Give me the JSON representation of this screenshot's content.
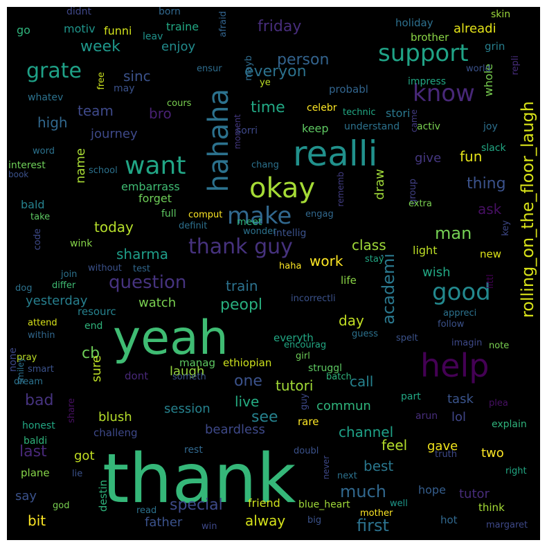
{
  "words": [
    {
      "text": "thank",
      "color": "#35b779"
    },
    {
      "text": "yeah",
      "color": "#3fbc73"
    },
    {
      "text": "realli",
      "color": "#21918c"
    },
    {
      "text": "help",
      "color": "#440154"
    },
    {
      "text": "hahaha",
      "color": "#2c728e"
    },
    {
      "text": "okay",
      "color": "#a5db36"
    },
    {
      "text": "want",
      "color": "#21a585"
    },
    {
      "text": "make",
      "color": "#31688e"
    },
    {
      "text": "support",
      "color": "#20a386"
    },
    {
      "text": "know",
      "color": "#482878"
    },
    {
      "text": "grate",
      "color": "#1fa187"
    },
    {
      "text": "thank guy",
      "color": "#46327e"
    },
    {
      "text": "good",
      "color": "#23898e"
    },
    {
      "text": "rolling_on_the_floor_laugh",
      "color": "#d8e219"
    },
    {
      "text": "question",
      "color": "#46337f"
    },
    {
      "text": "academi",
      "color": "#2a788e"
    },
    {
      "text": "man",
      "color": "#75d054"
    },
    {
      "text": "much",
      "color": "#31688e"
    },
    {
      "text": "first",
      "color": "#2c728e"
    },
    {
      "text": "special",
      "color": "#3e4a89"
    },
    {
      "text": "last",
      "color": "#482878"
    },
    {
      "text": "bad",
      "color": "#46337f"
    },
    {
      "text": "cb",
      "color": "#6ece58"
    },
    {
      "text": "one",
      "color": "#3b528b"
    },
    {
      "text": "see",
      "color": "#26828e"
    },
    {
      "text": "peopl",
      "color": "#29af7f"
    },
    {
      "text": "everyon",
      "color": "#2c728e"
    },
    {
      "text": "time",
      "color": "#22a884"
    },
    {
      "text": "week",
      "color": "#1f988b"
    },
    {
      "text": "friday",
      "color": "#472d7b"
    },
    {
      "text": "person",
      "color": "#33638d"
    },
    {
      "text": "sharma",
      "color": "#1f9e89"
    },
    {
      "text": "today",
      "color": "#b5de2b"
    },
    {
      "text": "fun",
      "color": "#e5e419"
    },
    {
      "text": "thing",
      "color": "#3b528b"
    },
    {
      "text": "ask",
      "color": "#471063"
    },
    {
      "text": "work",
      "color": "#fde725"
    },
    {
      "text": "class",
      "color": "#a0da39"
    },
    {
      "text": "train",
      "color": "#2c728e"
    },
    {
      "text": "day",
      "color": "#c2df23"
    },
    {
      "text": "watch",
      "color": "#7ad151"
    },
    {
      "text": "yesterday",
      "color": "#277f8e"
    },
    {
      "text": "channel",
      "color": "#1fa187"
    },
    {
      "text": "feel",
      "color": "#b5de2b"
    },
    {
      "text": "call",
      "color": "#26828e"
    },
    {
      "text": "tutori",
      "color": "#a2da37"
    },
    {
      "text": "live",
      "color": "#25ac82"
    },
    {
      "text": "commun",
      "color": "#2fb47c"
    },
    {
      "text": "task",
      "color": "#3a548c"
    },
    {
      "text": "lol",
      "color": "#404688"
    },
    {
      "text": "wish",
      "color": "#22a884"
    },
    {
      "text": "best",
      "color": "#2a778e"
    },
    {
      "text": "gave",
      "color": "#f1e51d"
    },
    {
      "text": "two",
      "color": "#fde725"
    },
    {
      "text": "tutor",
      "color": "#472c7a"
    },
    {
      "text": "hope",
      "color": "#355e8d"
    },
    {
      "text": "alway",
      "color": "#d5e21a"
    },
    {
      "text": "friend",
      "color": "#cde11d"
    },
    {
      "text": "father",
      "color": "#3b528b"
    },
    {
      "text": "bit",
      "color": "#fde725"
    },
    {
      "text": "say",
      "color": "#3b528b"
    },
    {
      "text": "got",
      "color": "#c2df23"
    },
    {
      "text": "blush",
      "color": "#b5de2b"
    },
    {
      "text": "session",
      "color": "#26828e"
    },
    {
      "text": "beardless",
      "color": "#3e4989"
    },
    {
      "text": "laugh",
      "color": "#98d83e"
    },
    {
      "text": "sure",
      "color": "#bddf26"
    },
    {
      "text": "high",
      "color": "#31688e"
    },
    {
      "text": "team",
      "color": "#3e4989"
    },
    {
      "text": "bro",
      "color": "#482173"
    },
    {
      "text": "journey",
      "color": "#3e4989"
    },
    {
      "text": "sinc",
      "color": "#3b528b"
    },
    {
      "text": "name",
      "color": "#a8db34"
    },
    {
      "text": "give",
      "color": "#453781"
    },
    {
      "text": "draw",
      "color": "#a0da39"
    },
    {
      "text": "keep",
      "color": "#5ec962"
    },
    {
      "text": "stori",
      "color": "#2a788e"
    },
    {
      "text": "whole",
      "color": "#7ad151"
    },
    {
      "text": "alreadi",
      "color": "#e5e419"
    },
    {
      "text": "enjoy",
      "color": "#228c8d"
    },
    {
      "text": "traine",
      "color": "#22a884"
    },
    {
      "text": "motiv",
      "color": "#1f958b"
    },
    {
      "text": "funni",
      "color": "#d2e21b"
    },
    {
      "text": "go",
      "color": "#2fb47c"
    },
    {
      "text": "didnt",
      "color": "#3f4788"
    },
    {
      "text": "born",
      "color": "#31688e"
    },
    {
      "text": "leav",
      "color": "#20938c"
    },
    {
      "text": "afraid",
      "color": "#32648e"
    },
    {
      "text": "mayb",
      "color": "#2f6c8e"
    },
    {
      "text": "holiday",
      "color": "#2d708e"
    },
    {
      "text": "brother",
      "color": "#8bd646"
    },
    {
      "text": "grin",
      "color": "#277f8e"
    },
    {
      "text": "skin",
      "color": "#9dd93b"
    },
    {
      "text": "ensur",
      "color": "#2e6d8e"
    },
    {
      "text": "free",
      "color": "#cae11f"
    },
    {
      "text": "may",
      "color": "#3b528b"
    },
    {
      "text": "whatev",
      "color": "#2c728e"
    },
    {
      "text": "cours",
      "color": "#7ad151"
    },
    {
      "text": "ye",
      "color": "#bddf26"
    },
    {
      "text": "probabl",
      "color": "#32658e"
    },
    {
      "text": "impress",
      "color": "#22a884"
    },
    {
      "text": "world",
      "color": "#3b528b"
    },
    {
      "text": "repli",
      "color": "#472d7b"
    },
    {
      "text": "celebr",
      "color": "#fde725"
    },
    {
      "text": "sorri",
      "color": "#3e4989"
    },
    {
      "text": "understand",
      "color": "#2c728e"
    },
    {
      "text": "came",
      "color": "#433d84"
    },
    {
      "text": "activ",
      "color": "#7ad151"
    },
    {
      "text": "joy",
      "color": "#2d708e"
    },
    {
      "text": "word",
      "color": "#2c728e"
    },
    {
      "text": "moment",
      "color": "#453882"
    },
    {
      "text": "chang",
      "color": "#2c728e"
    },
    {
      "text": "slack",
      "color": "#22a884"
    },
    {
      "text": "interest",
      "color": "#6ece58"
    },
    {
      "text": "school",
      "color": "#2c728e"
    },
    {
      "text": "book",
      "color": "#3b528b"
    },
    {
      "text": "embarrass",
      "color": "#3fbc73"
    },
    {
      "text": "forget",
      "color": "#6ece58"
    },
    {
      "text": "rememb",
      "color": "#433e85"
    },
    {
      "text": "group",
      "color": "#424186"
    },
    {
      "text": "extra",
      "color": "#7ad151"
    },
    {
      "text": "bald",
      "color": "#26828e"
    },
    {
      "text": "full",
      "color": "#5ec962"
    },
    {
      "text": "comput",
      "color": "#fde725"
    },
    {
      "text": "meet",
      "color": "#2fb47c"
    },
    {
      "text": "engag",
      "color": "#31688e"
    },
    {
      "text": "definit",
      "color": "#2d708e"
    },
    {
      "text": "intellig",
      "color": "#3b528b"
    },
    {
      "text": "take",
      "color": "#5ec962"
    },
    {
      "text": "wonder",
      "color": "#2c728e"
    },
    {
      "text": "code",
      "color": "#3e4989"
    },
    {
      "text": "wink",
      "color": "#86d549"
    },
    {
      "text": "light",
      "color": "#bddf26"
    },
    {
      "text": "new",
      "color": "#dde318"
    },
    {
      "text": "key",
      "color": "#3e4989"
    },
    {
      "text": "join",
      "color": "#2c728e"
    },
    {
      "text": "without",
      "color": "#3b528b"
    },
    {
      "text": "test",
      "color": "#31688e"
    },
    {
      "text": "haha",
      "color": "#fde725"
    },
    {
      "text": "stay",
      "color": "#22a884"
    },
    {
      "text": "dog",
      "color": "#2c728e"
    },
    {
      "text": "differ",
      "color": "#3fbc73"
    },
    {
      "text": "life",
      "color": "#8bd646"
    },
    {
      "text": "incorrectli",
      "color": "#3b528b"
    },
    {
      "text": "littl",
      "color": "#440154"
    },
    {
      "text": "resourc",
      "color": "#26828e"
    },
    {
      "text": "end",
      "color": "#2fb47c"
    },
    {
      "text": "attend",
      "color": "#d8e219"
    },
    {
      "text": "within",
      "color": "#31688e"
    },
    {
      "text": "appreci",
      "color": "#2c728e"
    },
    {
      "text": "follow",
      "color": "#3b528b"
    },
    {
      "text": "encourag",
      "color": "#22a884"
    },
    {
      "text": "guess",
      "color": "#2c728e"
    },
    {
      "text": "spelt",
      "color": "#3b528b"
    },
    {
      "text": "none",
      "color": "#3e4989"
    },
    {
      "text": "smiley",
      "color": "#2c728e"
    },
    {
      "text": "everyth",
      "color": "#22a884"
    },
    {
      "text": "imagin",
      "color": "#3e4989"
    },
    {
      "text": "note",
      "color": "#7ad151"
    },
    {
      "text": "pray",
      "color": "#bddf26"
    },
    {
      "text": "smart",
      "color": "#3b528b"
    },
    {
      "text": "dont",
      "color": "#482878"
    },
    {
      "text": "manag",
      "color": "#5ec962"
    },
    {
      "text": "ethiopian",
      "color": "#cde11d"
    },
    {
      "text": "girl",
      "color": "#6ece58"
    },
    {
      "text": "struggl",
      "color": "#5ec962"
    },
    {
      "text": "dream",
      "color": "#2c728e"
    },
    {
      "text": "someth",
      "color": "#3b528b"
    },
    {
      "text": "batch",
      "color": "#2fb47c"
    },
    {
      "text": "part",
      "color": "#22a884"
    },
    {
      "text": "guy",
      "color": "#3e4989"
    },
    {
      "text": "plea",
      "color": "#471063"
    },
    {
      "text": "share",
      "color": "#471063"
    },
    {
      "text": "arun",
      "color": "#472d7b"
    },
    {
      "text": "rare",
      "color": "#fde725"
    },
    {
      "text": "explain",
      "color": "#2fb47c"
    },
    {
      "text": "honest",
      "color": "#22a884"
    },
    {
      "text": "challeng",
      "color": "#3e4989"
    },
    {
      "text": "baldi",
      "color": "#2fb47c"
    },
    {
      "text": "rest",
      "color": "#31688e"
    },
    {
      "text": "doubl",
      "color": "#3b528b"
    },
    {
      "text": "truth",
      "color": "#3e4989"
    },
    {
      "text": "plane",
      "color": "#86d549"
    },
    {
      "text": "lie",
      "color": "#3b528b"
    },
    {
      "text": "never",
      "color": "#3e4989"
    },
    {
      "text": "next",
      "color": "#2c728e"
    },
    {
      "text": "right",
      "color": "#22a884"
    },
    {
      "text": "god",
      "color": "#7ad151"
    },
    {
      "text": "destin",
      "color": "#2fb47c"
    },
    {
      "text": "read",
      "color": "#2c728e"
    },
    {
      "text": "blue_heart",
      "color": "#a0da39"
    },
    {
      "text": "well",
      "color": "#1f988b"
    },
    {
      "text": "mother",
      "color": "#fde725"
    },
    {
      "text": "think",
      "color": "#a5db36"
    },
    {
      "text": "big",
      "color": "#3b528b"
    },
    {
      "text": "win",
      "color": "#3e4989"
    },
    {
      "text": "hot",
      "color": "#31688e"
    },
    {
      "text": "margaret",
      "color": "#3e4989"
    },
    {
      "text": "technic",
      "color": "#22a884"
    }
  ]
}
